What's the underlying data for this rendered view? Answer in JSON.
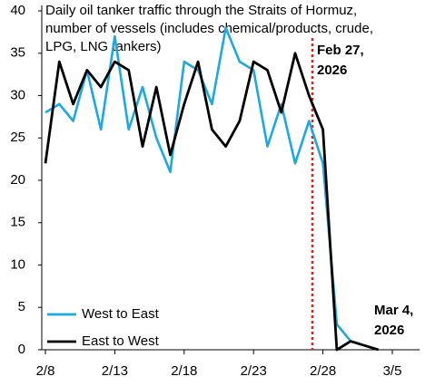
{
  "chart_data": {
    "type": "line",
    "title": [
      "Daily oil tanker traffic through the Straits of Hormuz,",
      "number of vessels (includes chemical/products, crude,",
      "LPG, LNG tankers)"
    ],
    "categories": [
      "2/8",
      null,
      null,
      null,
      null,
      "2/13",
      null,
      null,
      null,
      null,
      "2/18",
      null,
      null,
      null,
      null,
      "2/23",
      null,
      null,
      null,
      null,
      "2/28",
      null,
      null,
      null,
      null,
      "3/5"
    ],
    "series": [
      {
        "name": "West to East",
        "color": "#1aa9e1",
        "values": [
          28,
          29,
          27,
          33,
          26,
          37,
          26,
          31,
          25,
          21,
          34,
          33,
          29,
          38,
          34,
          33,
          24,
          29,
          22,
          27,
          22,
          3,
          1,
          null,
          null,
          null
        ]
      },
      {
        "name": "East to West",
        "color": "#000000",
        "values": [
          22,
          34,
          29,
          33,
          31,
          34,
          33,
          24,
          31,
          23,
          29,
          34,
          26,
          24,
          27,
          34,
          33,
          28,
          35,
          30,
          26,
          0,
          1,
          0.5,
          0,
          null
        ]
      }
    ],
    "ylim": [
      0,
      40
    ],
    "yticks": [
      0,
      5,
      10,
      15,
      20,
      25,
      30,
      35,
      40
    ],
    "annotations": [
      {
        "lines": [
          "Feb 27,",
          "2026"
        ],
        "color": "#e0201b"
      },
      {
        "lines": [
          "Mar 4,",
          "2026"
        ],
        "color": "#000000"
      }
    ],
    "event_line_color": "#e0201b",
    "grid": false
  }
}
